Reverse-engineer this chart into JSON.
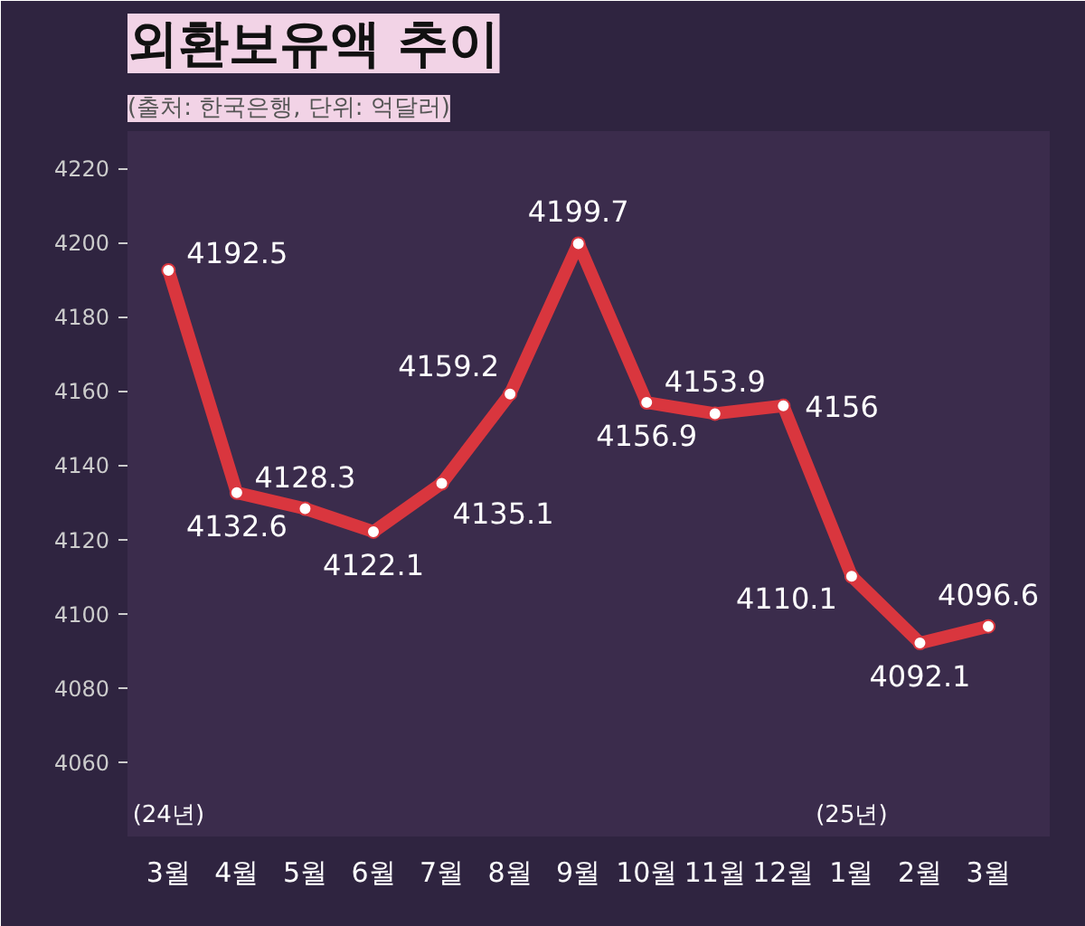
{
  "chart_data": {
    "type": "line",
    "title": "외환보유액 추이",
    "subtitle": "(출처: 한국은행, 단위: 억달러)",
    "categories": [
      "3월",
      "4월",
      "5월",
      "6월",
      "7월",
      "8월",
      "9월",
      "10월",
      "11월",
      "12월",
      "1월",
      "2월",
      "3월"
    ],
    "values": [
      4192.5,
      4132.6,
      4128.3,
      4122.1,
      4135.1,
      4159.2,
      4199.7,
      4156.9,
      4153.9,
      4156,
      4110.1,
      4092.1,
      4096.6
    ],
    "color": "#d9363e",
    "marker": "circle",
    "data_labels": true,
    "grid": false,
    "ylim": [
      4040,
      4230
    ],
    "yticks": [
      4060,
      4080,
      4100,
      4120,
      4140,
      4160,
      4180,
      4200,
      4220
    ],
    "annotations": [
      "(24년)",
      "(25년)"
    ]
  }
}
